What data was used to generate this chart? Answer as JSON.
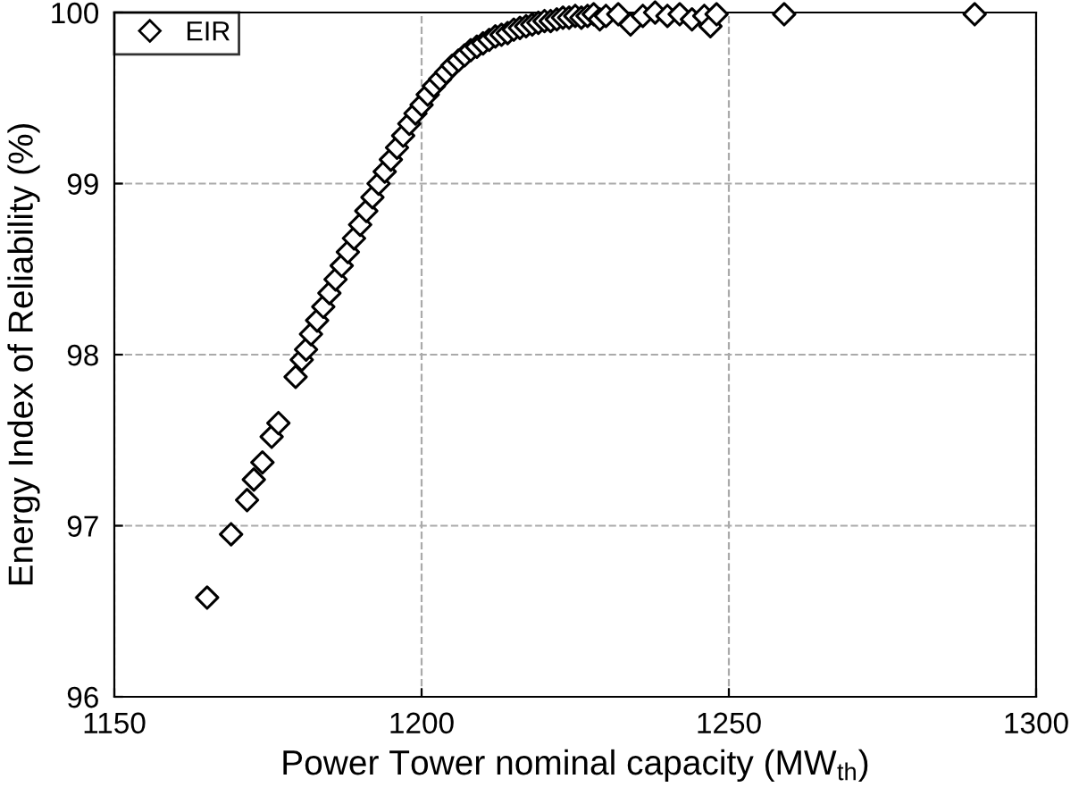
{
  "chart_data": {
    "type": "scatter",
    "xlabel": "Power Tower nominal capacity (MW$_{th}$)",
    "ylabel": "Energy Index of Reliability (%)",
    "xlim": [
      1150,
      1300
    ],
    "ylim": [
      96,
      100
    ],
    "xticks": [
      1150,
      1200,
      1250,
      1300
    ],
    "yticks": [
      96,
      97,
      98,
      99,
      100
    ],
    "grid": true,
    "legend": "top left",
    "marker": "diamond",
    "series": [
      {
        "name": "EIR",
        "color": "#000000",
        "x": [
          1165.1,
          1169.0,
          1171.6,
          1172.7,
          1174.1,
          1175.6,
          1176.7,
          1179.5,
          1180.5,
          1181.2,
          1182.0,
          1183.0,
          1184.0,
          1185.0,
          1186.0,
          1187.0,
          1188.0,
          1189.0,
          1190.0,
          1191.0,
          1192.0,
          1193.0,
          1194.0,
          1195.0,
          1196.0,
          1197.0,
          1198.0,
          1199.0,
          1200.0,
          1201.0,
          1202.0,
          1203.0,
          1204.0,
          1205.0,
          1206.0,
          1207.0,
          1208.0,
          1209.0,
          1210.0,
          1211.0,
          1212.0,
          1213.0,
          1214.0,
          1215.0,
          1216.0,
          1217.0,
          1218.0,
          1219.0,
          1220.0,
          1221.0,
          1222.0,
          1223.0,
          1224.0,
          1225.0,
          1226.0,
          1227.0,
          1228.0,
          1229.0,
          1230.0,
          1232.0,
          1234.0,
          1236.0,
          1238.0,
          1240.0,
          1242.0,
          1244.0,
          1246.0,
          1247.0,
          1248.0,
          1259.0,
          1290.0
        ],
        "values": [
          96.58,
          96.95,
          97.15,
          97.27,
          97.37,
          97.52,
          97.6,
          97.87,
          97.97,
          98.03,
          98.12,
          98.2,
          98.28,
          98.36,
          98.44,
          98.52,
          98.6,
          98.68,
          98.76,
          98.84,
          98.92,
          99.0,
          99.07,
          99.14,
          99.21,
          99.28,
          99.35,
          99.41,
          99.46,
          99.52,
          99.57,
          99.61,
          99.65,
          99.69,
          99.72,
          99.75,
          99.78,
          99.8,
          99.82,
          99.84,
          99.86,
          99.87,
          99.88,
          99.9,
          99.91,
          99.92,
          99.93,
          99.94,
          99.95,
          99.95,
          99.96,
          99.97,
          99.97,
          99.98,
          99.97,
          99.98,
          99.99,
          99.96,
          99.98,
          99.99,
          99.93,
          99.98,
          100.0,
          99.98,
          99.99,
          99.96,
          99.98,
          99.92,
          99.99,
          99.99,
          99.99
        ]
      }
    ]
  }
}
